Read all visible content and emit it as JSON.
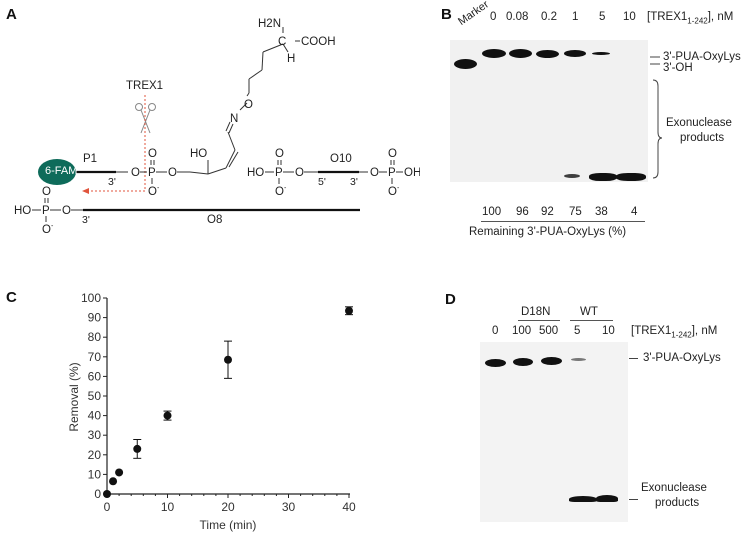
{
  "figure": {
    "panels": [
      "A",
      "B",
      "C",
      "D"
    ]
  },
  "panel_a": {
    "letter": "A",
    "enzyme_label": "TREX1",
    "fam_label": "6-FAM",
    "fam_color": "#0e6b5a",
    "cleavage_arrow_color": "#e0543c",
    "strands": {
      "p1": "P1",
      "o10": "O10",
      "o8": "O8"
    },
    "ends": {
      "p1_3prime": "3'",
      "o10_5prime": "5'",
      "o10_3prime": "3'",
      "o8_3prime": "3'"
    },
    "chem": {
      "h2n": "H2N",
      "cooh": "COOH",
      "c": "C",
      "h": "H",
      "n": "N",
      "o": "O",
      "ho": "HO",
      "oh": "OH",
      "p": "P",
      "o_minus": "O-"
    }
  },
  "panel_b": {
    "letter": "B",
    "marker_label": "Marker",
    "concentration_header": "[TREX1",
    "concentration_sub": "1-242",
    "concentration_unit": "], nM",
    "lanes": [
      "0",
      "0.08",
      "0.2",
      "1",
      "5",
      "10"
    ],
    "band_labels": {
      "substrate": "3'-PUA-OxyLys",
      "oh": "3'-OH",
      "products_line1": "Exonuclease",
      "products_line2": "products"
    },
    "remaining_values": [
      "100",
      "96",
      "92",
      "75",
      "38",
      "4"
    ],
    "remaining_label": "Remaining 3'-PUA-OxyLys (%)"
  },
  "panel_c": {
    "letter": "C"
  },
  "chart_data": {
    "type": "scatter",
    "title": "",
    "xlabel": "Time (min)",
    "ylabel": "Removal (%)",
    "xlim": [
      0,
      40
    ],
    "ylim": [
      0,
      100
    ],
    "xticks": [
      0,
      10,
      20,
      30,
      40
    ],
    "yticks": [
      0,
      10,
      20,
      30,
      40,
      50,
      60,
      70,
      80,
      90,
      100
    ],
    "grid": false,
    "legend": "none",
    "series": [
      {
        "name": "Removal",
        "x": [
          0,
          1,
          2,
          5,
          10,
          20,
          40
        ],
        "y": [
          0,
          6.5,
          11,
          23,
          40,
          68.5,
          93.5
        ],
        "error": [
          0,
          0,
          0,
          4.8,
          2.3,
          9.5,
          2
        ]
      }
    ]
  },
  "panel_d": {
    "letter": "D",
    "group_labels": {
      "mutant": "D18N",
      "wildtype": "WT"
    },
    "concentration_header": "[TREX1",
    "concentration_sub": "1-242",
    "concentration_unit": "], nM",
    "lanes": [
      "0",
      "100",
      "500",
      "5",
      "10"
    ],
    "band_labels": {
      "substrate": "3'-PUA-OxyLys",
      "products_line1": "Exonuclease",
      "products_line2": "products"
    }
  }
}
